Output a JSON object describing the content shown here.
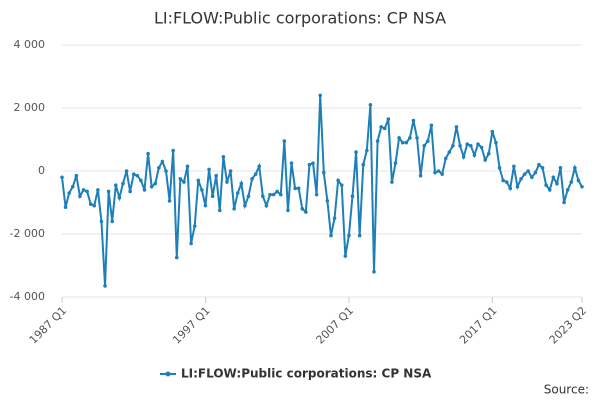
{
  "chart_data": {
    "type": "line",
    "title": "LI:FLOW:Public corporations: CP NSA",
    "categories": [
      "1987 Q1",
      null,
      null,
      null,
      null,
      null,
      null,
      null,
      null,
      null,
      null,
      null,
      null,
      null,
      null,
      null,
      null,
      null,
      null,
      null,
      null,
      null,
      null,
      null,
      null,
      null,
      null,
      null,
      null,
      null,
      null,
      null,
      null,
      null,
      null,
      null,
      null,
      null,
      null,
      null,
      "1997 Q1",
      null,
      null,
      null,
      null,
      null,
      null,
      null,
      null,
      null,
      null,
      null,
      null,
      null,
      null,
      null,
      null,
      null,
      null,
      null,
      null,
      null,
      null,
      null,
      null,
      null,
      null,
      null,
      null,
      null,
      null,
      null,
      null,
      null,
      null,
      null,
      null,
      null,
      null,
      null,
      "2007 Q1",
      null,
      null,
      null,
      null,
      null,
      null,
      null,
      null,
      null,
      null,
      null,
      null,
      null,
      null,
      null,
      null,
      null,
      null,
      null,
      null,
      null,
      null,
      null,
      null,
      null,
      null,
      null,
      null,
      null,
      null,
      null,
      null,
      null,
      null,
      null,
      null,
      null,
      null,
      null,
      "2017 Q1",
      null,
      null,
      null,
      null,
      null,
      null,
      null,
      null,
      null,
      null,
      null,
      null,
      null,
      null,
      null,
      null,
      null,
      null,
      null,
      null,
      null,
      null,
      null,
      null,
      "2023 Q2"
    ],
    "series": [
      {
        "name": "LI:FLOW:Public corporations: CP NSA",
        "color": "#1f7fb8",
        "values": [
          -200,
          -1150,
          -700,
          -500,
          -150,
          -800,
          -600,
          -650,
          -1050,
          -1100,
          -600,
          -1600,
          -3650,
          -650,
          -1600,
          -450,
          -850,
          -400,
          0,
          -650,
          -100,
          -150,
          -300,
          -600,
          550,
          -500,
          -400,
          100,
          300,
          0,
          -950,
          650,
          -2750,
          -250,
          -350,
          150,
          -2300,
          -1750,
          -300,
          -600,
          -1100,
          50,
          -800,
          -150,
          -1250,
          450,
          -350,
          0,
          -1200,
          -700,
          -400,
          -1100,
          -800,
          -250,
          -100,
          150,
          -800,
          -1100,
          -750,
          -750,
          -650,
          -750,
          950,
          -1250,
          250,
          -550,
          -550,
          -1200,
          -1300,
          200,
          250,
          -750,
          2400,
          -50,
          -950,
          -2050,
          -1500,
          -300,
          -450,
          -2700,
          -2050,
          -800,
          600,
          -2050,
          200,
          650,
          2100,
          -3200,
          950,
          1400,
          1350,
          1650,
          -350,
          250,
          1050,
          900,
          900,
          1050,
          1600,
          1050,
          -150,
          800,
          950,
          1450,
          -50,
          0,
          -100,
          400,
          600,
          800,
          1400,
          800,
          450,
          850,
          800,
          500,
          850,
          750,
          350,
          550,
          1250,
          900,
          100,
          -300,
          -350,
          -550,
          150,
          -500,
          -250,
          -100,
          0,
          -200,
          -50,
          200,
          100,
          -450,
          -600,
          -200,
          -400,
          100,
          -1000,
          -600,
          -350,
          100,
          -300,
          -500
        ]
      }
    ],
    "ylim": [
      -4000,
      4000
    ],
    "yticks": [
      {
        "value": -4000,
        "label": "-4 000"
      },
      {
        "value": -2000,
        "label": "-2 000"
      },
      0,
      {
        "value": 2000,
        "label": "2 000"
      },
      {
        "value": 4000,
        "label": "4 000"
      }
    ],
    "grid": true,
    "legend": "bottom",
    "source": "Source:"
  }
}
